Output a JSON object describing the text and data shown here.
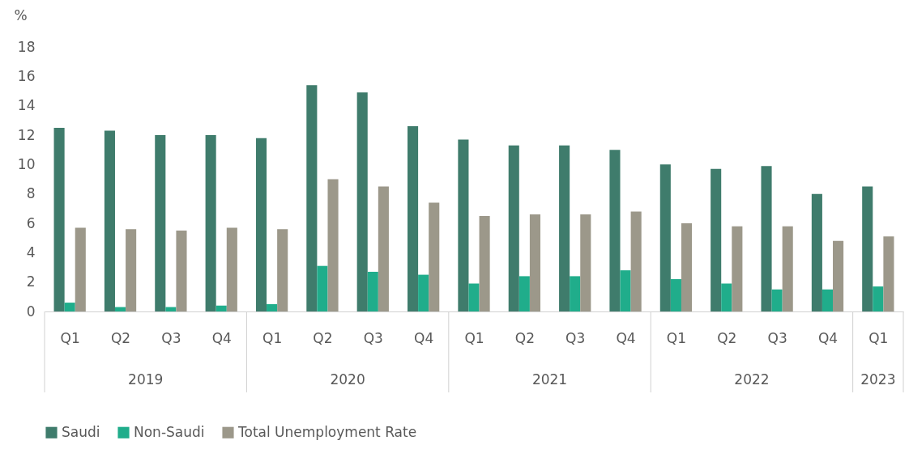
{
  "chart_data": {
    "type": "bar",
    "ylabel": "%",
    "categories": [
      "Q1",
      "Q2",
      "Q3",
      "Q4",
      "Q1",
      "Q2",
      "Q3",
      "Q4",
      "Q1",
      "Q2",
      "Q3",
      "Q4",
      "Q1",
      "Q2",
      "Q3",
      "Q4",
      "Q1"
    ],
    "series": [
      {
        "name": "Saudi",
        "color": "#3f7c6c",
        "values": [
          12.5,
          12.3,
          12.0,
          12.0,
          11.8,
          15.4,
          14.9,
          12.6,
          11.7,
          11.3,
          11.3,
          11.0,
          10.0,
          9.7,
          9.9,
          8.0,
          8.5
        ]
      },
      {
        "name": "Non-Saudi",
        "color": "#20ad8b",
        "values": [
          0.6,
          0.3,
          0.3,
          0.4,
          0.5,
          3.1,
          2.7,
          2.5,
          1.9,
          2.4,
          2.4,
          2.8,
          2.2,
          1.9,
          1.5,
          1.5,
          1.7
        ]
      },
      {
        "name": "Total Unemployment Rate",
        "color": "#9c988a",
        "values": [
          5.7,
          5.6,
          5.5,
          5.7,
          5.6,
          9.0,
          8.5,
          7.4,
          6.5,
          6.6,
          6.6,
          6.8,
          6.0,
          5.8,
          5.8,
          4.8,
          5.1
        ]
      }
    ],
    "annotations": [
      "2019",
      "2020",
      "2021",
      "2022",
      "2023"
    ],
    "ylim": [
      0,
      18
    ],
    "yticks": [
      0,
      2,
      4,
      6,
      8,
      10,
      12,
      14,
      16,
      18
    ],
    "grid": false,
    "legend": "bottom"
  }
}
